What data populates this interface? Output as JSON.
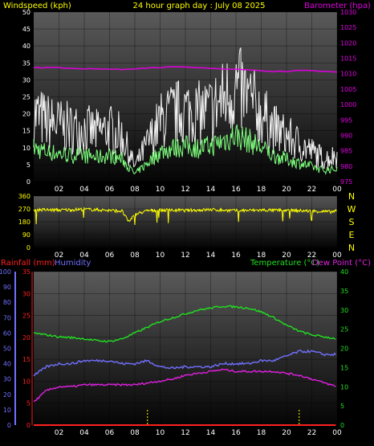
{
  "header": {
    "windspeed_label": "Windspeed (kph)",
    "title": "24 hour graph day : July 08 2025",
    "barometer_label": "Barometer (hpa)"
  },
  "colors": {
    "background": "#000000",
    "wind_gust": "#f0f0f0",
    "wind_avg": "#7dff7d",
    "barometer": "#e000e0",
    "direction": "#ffff00",
    "rainfall": "#ff2020",
    "humidity": "#7070ff",
    "temperature": "#20e020",
    "dewpoint": "#e020e0",
    "header_text": "#ffff00",
    "axis_text": "#ffffff"
  },
  "compass": [
    "N",
    "W",
    "S",
    "E",
    "N"
  ],
  "bottom_labels": {
    "rainfall": "Rainfall (mm)",
    "humidity": "Humidity",
    "temperature": "Temperature (°C)",
    "dewpoint": "Dew Point (°C)"
  },
  "chart_data": [
    {
      "type": "line",
      "title": "24 hour graph day : July 08 2025",
      "x_ticks": [
        "02",
        "04",
        "06",
        "08",
        "10",
        "12",
        "14",
        "16",
        "18",
        "20",
        "22",
        "00"
      ],
      "x_range_hours": [
        0,
        24
      ],
      "y_left": {
        "label": "Windspeed (kph)",
        "range": [
          0,
          50
        ],
        "ticks": [
          0,
          5,
          10,
          15,
          20,
          25,
          30,
          35,
          40,
          45,
          50
        ]
      },
      "y_right": {
        "label": "Barometer (hpa)",
        "range": [
          975,
          1030
        ],
        "ticks": [
          975,
          980,
          985,
          990,
          995,
          1000,
          1005,
          1010,
          1015,
          1020,
          1025,
          1030
        ]
      },
      "series": [
        {
          "name": "Windspeed (kph)",
          "axis": "left",
          "x": [
            0,
            1,
            2,
            3,
            4,
            5,
            6,
            7,
            8,
            9,
            10,
            11,
            12,
            13,
            14,
            15,
            16,
            17,
            18,
            19,
            20,
            21,
            22,
            23,
            24
          ],
          "y": [
            18,
            16,
            15,
            14,
            14,
            13,
            14,
            12,
            4,
            10,
            16,
            18,
            19,
            18,
            19,
            22,
            25,
            22,
            18,
            14,
            12,
            10,
            8,
            6,
            7
          ]
        },
        {
          "name": "Barometer (hpa)",
          "axis": "right",
          "x": [
            0,
            1,
            2,
            3,
            4,
            5,
            6,
            7,
            8,
            9,
            10,
            11,
            12,
            13,
            14,
            15,
            16,
            17,
            18,
            19,
            20,
            21,
            22,
            23,
            24
          ],
          "y": [
            1012,
            1012,
            1012,
            1011.8,
            1011.6,
            1011.6,
            1011.4,
            1011.4,
            1011.6,
            1011.8,
            1012,
            1012.2,
            1012.2,
            1012,
            1011.8,
            1011.6,
            1011.4,
            1011.2,
            1011,
            1010.8,
            1010.8,
            1011,
            1011,
            1010.8,
            1010.5
          ]
        }
      ]
    },
    {
      "type": "line",
      "x_ticks": [
        "02",
        "04",
        "06",
        "08",
        "10",
        "12",
        "14",
        "16",
        "18",
        "20",
        "22",
        "00"
      ],
      "y_left": {
        "range": [
          0,
          360
        ],
        "ticks": [
          0,
          90,
          180,
          270,
          360
        ]
      },
      "series": [
        {
          "name": "Wind direction",
          "x": [
            0,
            2,
            4,
            6,
            7,
            7.5,
            8,
            9,
            10,
            12,
            14,
            16,
            18,
            20,
            22,
            23.5,
            24
          ],
          "y": [
            265,
            262,
            268,
            260,
            255,
            180,
            230,
            258,
            262,
            260,
            265,
            258,
            262,
            260,
            255,
            250,
            255
          ]
        }
      ]
    },
    {
      "type": "line",
      "x_ticks": [
        "02",
        "04",
        "06",
        "08",
        "10",
        "12",
        "14",
        "16",
        "18",
        "20",
        "22",
        "00"
      ],
      "y_left_outer": {
        "label": "Humidity",
        "range": [
          0,
          100
        ],
        "ticks": [
          0,
          10,
          20,
          30,
          40,
          50,
          60,
          70,
          80,
          90,
          100
        ]
      },
      "y_left_inner": {
        "label": "Rainfall (mm)",
        "range": [
          0,
          35
        ],
        "ticks": [
          0,
          5,
          10,
          15,
          20,
          25,
          30,
          35
        ]
      },
      "y_right": {
        "label": "Temperature (°C)",
        "range": [
          0,
          40
        ],
        "ticks": [
          0,
          5,
          10,
          15,
          20,
          25,
          30,
          35,
          40
        ]
      },
      "series": [
        {
          "name": "Temperature (°C)",
          "axis": "right",
          "x": [
            0,
            1,
            2,
            3,
            4,
            5,
            6,
            7,
            8,
            9,
            10,
            11,
            12,
            13,
            14,
            15,
            16,
            17,
            18,
            19,
            20,
            21,
            22,
            23,
            24
          ],
          "y": [
            24,
            23.5,
            23,
            22.8,
            22.5,
            22,
            21.8,
            22.5,
            24,
            25.5,
            27,
            28,
            29,
            30,
            30.5,
            31,
            30.8,
            30.5,
            29.5,
            28,
            26,
            24.5,
            23.5,
            23,
            22.5
          ]
        },
        {
          "name": "Humidity",
          "axis": "left_outer",
          "x": [
            0,
            1,
            2,
            3,
            4,
            5,
            6,
            7,
            8,
            9,
            10,
            11,
            12,
            13,
            14,
            15,
            16,
            17,
            18,
            19,
            20,
            21,
            22,
            23,
            24
          ],
          "y": [
            32,
            38,
            40,
            40,
            42,
            42,
            42,
            40,
            40,
            42,
            38,
            37,
            38,
            38,
            38,
            40,
            40,
            40,
            42,
            42,
            45,
            48,
            48,
            46,
            46
          ]
        },
        {
          "name": "Dew Point (°C)",
          "axis": "right",
          "x": [
            0,
            1,
            2,
            3,
            4,
            5,
            6,
            7,
            8,
            9,
            10,
            11,
            12,
            13,
            14,
            15,
            16,
            17,
            18,
            19,
            20,
            21,
            22,
            23,
            24
          ],
          "y": [
            6,
            9,
            10,
            10,
            10.5,
            10.5,
            10.5,
            10.5,
            10.5,
            11,
            11.5,
            12,
            13,
            13.5,
            14,
            14.5,
            14,
            14,
            14,
            14,
            13.5,
            13,
            12,
            11,
            10
          ]
        },
        {
          "name": "Rainfall (mm)",
          "axis": "left_inner",
          "x": [
            0,
            24
          ],
          "y": [
            0,
            0
          ]
        }
      ]
    }
  ]
}
